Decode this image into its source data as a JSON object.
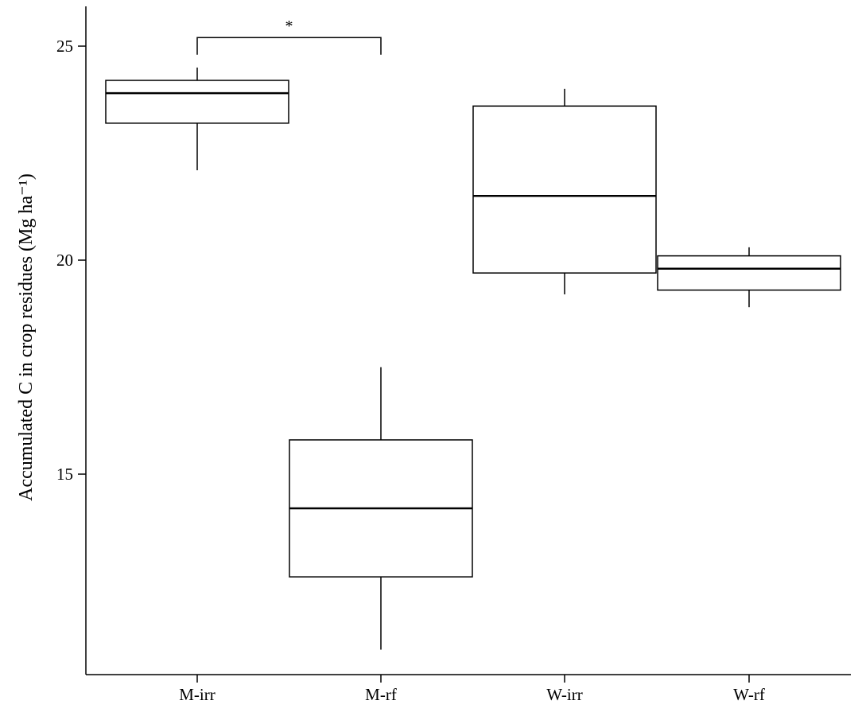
{
  "chart_data": {
    "type": "box",
    "title": "",
    "xlabel": "",
    "ylabel": "Accumulated C in crop residues (Mg ha⁻¹)",
    "ylim": [
      10.5,
      26
    ],
    "yticks": [
      15,
      20,
      25
    ],
    "grid": false,
    "categories": [
      "M-irr",
      "M-rf",
      "W-irr",
      "W-rf"
    ],
    "series": [
      {
        "boxes": [
          {
            "category": "M-irr",
            "min": 22.1,
            "q1": 23.2,
            "median": 23.9,
            "q3": 24.2,
            "max": 24.5
          },
          {
            "category": "M-rf",
            "min": 10.9,
            "q1": 12.6,
            "median": 14.2,
            "q3": 15.8,
            "max": 17.5
          },
          {
            "category": "W-irr",
            "min": 19.2,
            "q1": 19.7,
            "median": 21.5,
            "q3": 23.6,
            "max": 24.0
          },
          {
            "category": "W-rf",
            "min": 18.9,
            "q1": 19.3,
            "median": 19.8,
            "q3": 20.1,
            "max": 20.3
          }
        ]
      }
    ],
    "annotations": [
      {
        "type": "significance-bracket",
        "from": "M-irr",
        "to": "M-rf",
        "y": 25.2,
        "y_end": 24.8,
        "label": "*"
      }
    ]
  }
}
